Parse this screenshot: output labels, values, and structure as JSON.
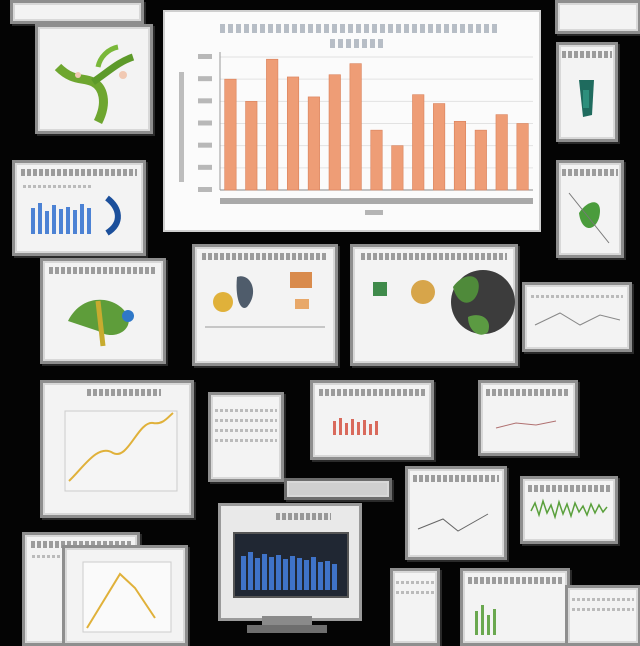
{
  "scene": {
    "description_tiles": 22
  },
  "main_chart": {
    "chart_data": {
      "type": "bar",
      "title": "",
      "xlabel": "",
      "ylabel": "",
      "ylim": [
        0,
        3
      ],
      "categories": [
        "",
        "",
        "",
        "",
        "",
        "",
        "",
        "",
        "",
        "",
        "",
        "",
        "",
        "",
        ""
      ],
      "values": [
        2.5,
        2.0,
        2.95,
        2.55,
        2.1,
        2.6,
        2.85,
        1.35,
        1.0,
        2.15,
        1.95,
        1.55,
        1.35,
        1.7,
        1.5
      ],
      "bar_color": "#ee9d76",
      "grid": true
    }
  },
  "colors": {
    "background": "#040404",
    "tile_border": "#8e8e8e",
    "accent_orange": "#ee9d76",
    "accent_blue": "#3f73c8",
    "accent_green": "#4f8a3a",
    "accent_yellow": "#e0b13a"
  }
}
